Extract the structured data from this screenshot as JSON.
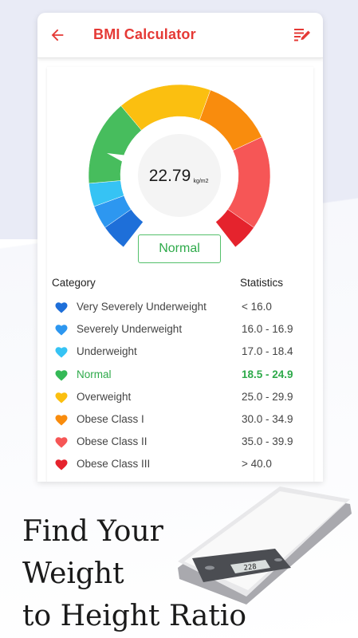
{
  "app": {
    "title": "BMI Calculator"
  },
  "gauge": {
    "value": "22.79",
    "unit": "kg/m2",
    "result_label": "Normal"
  },
  "table": {
    "header_category": "Category",
    "header_statistics": "Statistics",
    "rows": [
      {
        "name": "Very Severely Underweight",
        "range": "< 16.0",
        "color": "#1e6fd9"
      },
      {
        "name": "Severely Underweight",
        "range": "16.0 - 16.9",
        "color": "#2d97f0"
      },
      {
        "name": "Underweight",
        "range": "17.0 - 18.4",
        "color": "#36c3f4"
      },
      {
        "name": "Normal",
        "range": "18.5 - 24.9",
        "color": "#35b957"
      },
      {
        "name": "Overweight",
        "range": "25.0 - 29.9",
        "color": "#fbbf10"
      },
      {
        "name": "Obese Class I",
        "range": "30.0 - 34.9",
        "color": "#f98c0d"
      },
      {
        "name": "Obese Class II",
        "range": "35.0 - 39.9",
        "color": "#f65656"
      },
      {
        "name": "Obese Class III",
        "range": "> 40.0",
        "color": "#e5232d"
      }
    ]
  },
  "tagline": {
    "line1": "Find Your",
    "line2": "Weight",
    "line3": "to Height Ratio"
  },
  "scale_display": "228",
  "colors": {
    "accent": "#e53935",
    "normal_green": "#2eaa4a"
  }
}
